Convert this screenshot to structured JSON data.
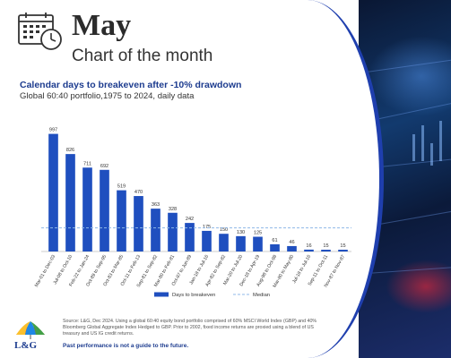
{
  "header": {
    "month": "May",
    "subtitle": "Chart of the month",
    "calendar_icon": "calendar-clock-icon"
  },
  "chart": {
    "title": "Calendar days to breakeven after -10% drawdown",
    "subtitle": "Global 60:40 portfolio,1975 to 2024, daily data"
  },
  "chart_data": {
    "type": "bar",
    "categories": [
      "Mar-01 to Dec-03",
      "Jul-08 to Oct-10",
      "Feb-22 to Jan-24",
      "Oct-89 to Sep-95",
      "Oct-83 to Mar-85",
      "Oct-11 to Feb-13",
      "Sep-81 to Sep-82",
      "Mar-80 to Feb-81",
      "Oct-87 to Jun-89",
      "Jan-18 to Jul-16",
      "Apr-82 to Sep-82",
      "Mar-20 to Jul-20",
      "Dec-18 to Apr-19",
      "Aug-98 to Oct-98",
      "Mar-80 to May-80",
      "Jul-18 to Jul-16",
      "Sep-11 to Oct-11",
      "Nov-87 to Nov-87"
    ],
    "values": [
      997,
      826,
      711,
      692,
      519,
      470,
      363,
      328,
      242,
      175,
      150,
      130,
      125,
      61,
      46,
      16,
      15,
      15
    ],
    "median": 200,
    "ylim": [
      0,
      1100
    ],
    "legend": {
      "bars": "Days to breakeven",
      "median": "Median",
      "placement": "bottom"
    },
    "colors": {
      "bar": "#1f4fbf",
      "median": "#8fb8e8"
    }
  },
  "footer": {
    "logo_text": "L&G",
    "source": "Source: L&G, Dec 2024. Using a global 60:40 equity bond portfolio comprised of 60% MSCI World Index (GBP) and 40% Bloomberg Global Aggregate Index Hedged to GBP. Prior to 2002, fixed income returns are proxied using a blend of US treasury and US IG credit returns.",
    "past_performance": "Past performance is not a guide to the future."
  }
}
